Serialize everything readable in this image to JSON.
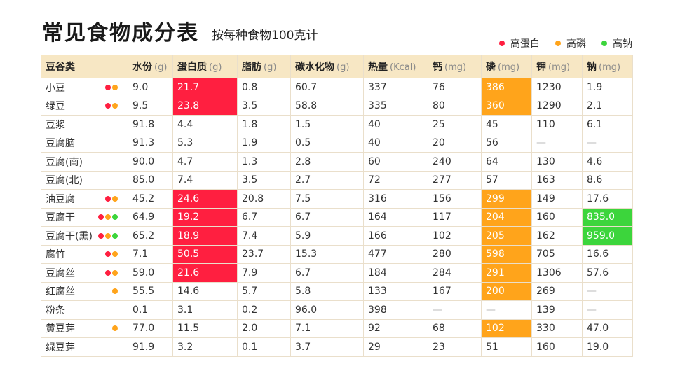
{
  "title": "常见食物成分表",
  "subtitle": "按每种食物100克计",
  "colors": {
    "high_protein": "#ff1f40",
    "high_phosphorus": "#ffa41b",
    "high_sodium": "#3cd53c",
    "header_bg": "#f7e7c4"
  },
  "legend": [
    {
      "label": "高蛋白",
      "color": "#ff1f40"
    },
    {
      "label": "高磷",
      "color": "#ffa41b"
    },
    {
      "label": "高钠",
      "color": "#3cd53c"
    }
  ],
  "table": {
    "columns": [
      {
        "label": "豆谷类",
        "unit": ""
      },
      {
        "label": "水份",
        "unit": "(g)"
      },
      {
        "label": "蛋白质",
        "unit": "(g)"
      },
      {
        "label": "脂肪",
        "unit": "(g)"
      },
      {
        "label": "碳水化物",
        "unit": "(g)"
      },
      {
        "label": "热量",
        "unit": "(Kcal)"
      },
      {
        "label": "钙",
        "unit": "(mg)"
      },
      {
        "label": "磷",
        "unit": "(mg)"
      },
      {
        "label": "钾",
        "unit": "(mg)"
      },
      {
        "label": "钠",
        "unit": "(mg)"
      }
    ],
    "rows": [
      {
        "name": "小豆",
        "dots": [
          "red",
          "orange"
        ],
        "values": [
          "9.0",
          "21.7",
          "0.8",
          "60.7",
          "337",
          "76",
          "386",
          "1230",
          "1.9"
        ],
        "hl": [
          "",
          "red",
          "",
          "",
          "",
          "",
          "orange",
          "",
          ""
        ]
      },
      {
        "name": "绿豆",
        "dots": [
          "red",
          "orange"
        ],
        "values": [
          "9.5",
          "23.8",
          "3.5",
          "58.8",
          "335",
          "80",
          "360",
          "1290",
          "2.1"
        ],
        "hl": [
          "",
          "red",
          "",
          "",
          "",
          "",
          "orange",
          "",
          ""
        ]
      },
      {
        "name": "豆浆",
        "dots": [],
        "values": [
          "91.8",
          "4.4",
          "1.8",
          "1.5",
          "40",
          "25",
          "45",
          "110",
          "6.1"
        ],
        "hl": [
          "",
          "",
          "",
          "",
          "",
          "",
          "",
          "",
          ""
        ]
      },
      {
        "name": "豆腐脑",
        "dots": [],
        "values": [
          "91.3",
          "5.3",
          "1.9",
          "0.5",
          "40",
          "20",
          "56",
          "—",
          "—"
        ],
        "hl": [
          "",
          "",
          "",
          "",
          "",
          "",
          "",
          "",
          ""
        ]
      },
      {
        "name": "豆腐(南)",
        "dots": [],
        "values": [
          "90.0",
          "4.7",
          "1.3",
          "2.8",
          "60",
          "240",
          "64",
          "130",
          "4.6"
        ],
        "hl": [
          "",
          "",
          "",
          "",
          "",
          "",
          "",
          "",
          ""
        ]
      },
      {
        "name": "豆腐(北)",
        "dots": [],
        "values": [
          "85.0",
          "7.4",
          "3.5",
          "2.7",
          "72",
          "277",
          "57",
          "163",
          "8.6"
        ],
        "hl": [
          "",
          "",
          "",
          "",
          "",
          "",
          "",
          "",
          ""
        ]
      },
      {
        "name": "油豆腐",
        "dots": [
          "red",
          "orange"
        ],
        "values": [
          "45.2",
          "24.6",
          "20.8",
          "7.5",
          "316",
          "156",
          "299",
          "149",
          "17.6"
        ],
        "hl": [
          "",
          "red",
          "",
          "",
          "",
          "",
          "orange",
          "",
          ""
        ]
      },
      {
        "name": "豆腐干",
        "dots": [
          "red",
          "orange",
          "green"
        ],
        "values": [
          "64.9",
          "19.2",
          "6.7",
          "6.7",
          "164",
          "117",
          "204",
          "160",
          "835.0"
        ],
        "hl": [
          "",
          "red",
          "",
          "",
          "",
          "",
          "orange",
          "",
          "green"
        ]
      },
      {
        "name": "豆腐干(熏)",
        "dots": [
          "red",
          "orange",
          "green"
        ],
        "values": [
          "65.2",
          "18.9",
          "7.4",
          "5.9",
          "166",
          "102",
          "205",
          "162",
          "959.0"
        ],
        "hl": [
          "",
          "red",
          "",
          "",
          "",
          "",
          "orange",
          "",
          "green"
        ]
      },
      {
        "name": "腐竹",
        "dots": [
          "red",
          "orange"
        ],
        "values": [
          "7.1",
          "50.5",
          "23.7",
          "15.3",
          "477",
          "280",
          "598",
          "705",
          "16.6"
        ],
        "hl": [
          "",
          "red",
          "",
          "",
          "",
          "",
          "orange",
          "",
          ""
        ]
      },
      {
        "name": "豆腐丝",
        "dots": [
          "red",
          "orange"
        ],
        "values": [
          "59.0",
          "21.6",
          "7.9",
          "6.7",
          "184",
          "284",
          "291",
          "1306",
          "57.6"
        ],
        "hl": [
          "",
          "red",
          "",
          "",
          "",
          "",
          "orange",
          "",
          ""
        ]
      },
      {
        "name": "红腐丝",
        "dots": [
          "orange"
        ],
        "values": [
          "55.5",
          "14.6",
          "5.7",
          "5.8",
          "133",
          "167",
          "200",
          "269",
          "—"
        ],
        "hl": [
          "",
          "",
          "",
          "",
          "",
          "",
          "orange",
          "",
          ""
        ]
      },
      {
        "name": "粉条",
        "dots": [],
        "values": [
          "0.1",
          "3.1",
          "0.2",
          "96.0",
          "398",
          "—",
          "—",
          "139",
          "—"
        ],
        "hl": [
          "",
          "",
          "",
          "",
          "",
          "",
          "",
          "",
          ""
        ]
      },
      {
        "name": "黄豆芽",
        "dots": [
          "orange"
        ],
        "values": [
          "77.0",
          "11.5",
          "2.0",
          "7.1",
          "92",
          "68",
          "102",
          "330",
          "47.0"
        ],
        "hl": [
          "",
          "",
          "",
          "",
          "",
          "",
          "orange",
          "",
          ""
        ]
      },
      {
        "name": "绿豆芽",
        "dots": [],
        "values": [
          "91.9",
          "3.2",
          "0.1",
          "3.7",
          "29",
          "23",
          "51",
          "160",
          "19.0"
        ],
        "hl": [
          "",
          "",
          "",
          "",
          "",
          "",
          "",
          "",
          ""
        ]
      }
    ]
  }
}
